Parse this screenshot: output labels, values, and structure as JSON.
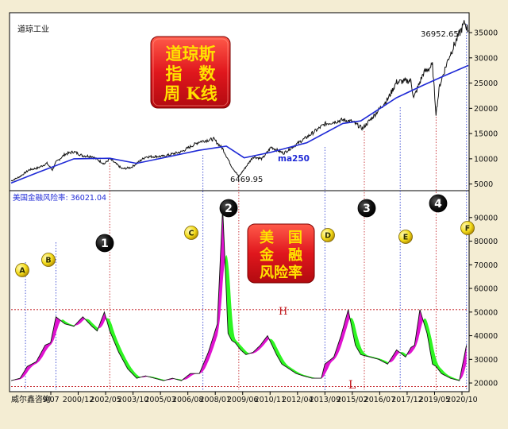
{
  "chart_data": [
    {
      "type": "line",
      "title": "道琼工业",
      "ylim": [
        4000,
        38000
      ],
      "yticks": [
        5000,
        10000,
        15000,
        20000,
        25000,
        30000,
        35000
      ],
      "colors": {
        "price": "#111111",
        "ma": "#1f2ad6"
      },
      "series": [
        {
          "name": "",
          "x": [
            1996.5,
            1997.0,
            1997.5,
            1998.0,
            1998.5,
            1998.8,
            1999.0,
            1999.5,
            2000.0,
            2000.5,
            2001.0,
            2001.7,
            2002.0,
            2002.7,
            2003.2,
            2004.0,
            2005.0,
            2006.0,
            2007.0,
            2007.8,
            2008.3,
            2008.8,
            2009.2,
            2010.0,
            2010.5,
            2011.0,
            2011.7,
            2012.5,
            2013.0,
            2014.0,
            2015.0,
            2015.5,
            2016.1,
            2016.7,
            2017.5,
            2018.0,
            2018.8,
            2018.95,
            2019.5,
            2020.0,
            2020.2,
            2020.4,
            2020.9,
            2021.5,
            2021.8,
            2022.0
          ],
          "values": [
            5600,
            6500,
            7800,
            8200,
            9100,
            7800,
            9300,
            10900,
            11400,
            10600,
            10500,
            9000,
            10000,
            8000,
            8300,
            10400,
            10500,
            11400,
            13400,
            13900,
            12000,
            8500,
            6470,
            10400,
            10000,
            12300,
            11100,
            13100,
            14300,
            16900,
            17700,
            17400,
            16000,
            18400,
            21800,
            25200,
            25500,
            22000,
            27000,
            28500,
            19000,
            24500,
            30000,
            34800,
            36952,
            35400
          ]
        },
        {
          "name": "ma250",
          "x": [
            1996.5,
            1998.0,
            2000.0,
            2002.0,
            2003.5,
            2005.0,
            2007.0,
            2008.5,
            2009.5,
            2011.0,
            2013.0,
            2015.0,
            2016.0,
            2018.0,
            2019.5,
            2020.5,
            2022.0
          ],
          "values": [
            5200,
            7300,
            10000,
            10100,
            9100,
            10200,
            11700,
            12500,
            10200,
            11300,
            13200,
            17000,
            17500,
            22100,
            24600,
            26200,
            28500
          ]
        }
      ],
      "annotations": [
        "36952.65",
        "6469.95",
        "ma250"
      ]
    },
    {
      "type": "area",
      "title": "美国金融风险率: 36021.04",
      "ylim": [
        17000,
        98000
      ],
      "yticks": [
        20000,
        30000,
        40000,
        50000,
        60000,
        70000,
        80000,
        90000
      ],
      "xticks": [
        "9/07",
        "2000/12",
        "2002/05",
        "2003/10",
        "2005/03",
        "2006/08",
        "2008/01",
        "2009/06",
        "2010/11",
        "2012/04",
        "2013/09",
        "2015/02",
        "2016/07",
        "2017/12",
        "2019/05",
        "2020/10"
      ],
      "hlines": [
        {
          "label": "H",
          "value": 51000
        },
        {
          "label": "L",
          "value": 18500
        }
      ],
      "colors": {
        "rising": "#e013d0",
        "falling": "#2ef521",
        "line": "#111111",
        "guides": "#c0141a"
      },
      "series": [
        {
          "name": "",
          "x": [
            1996.5,
            1997.0,
            1997.4,
            1997.9,
            1998.4,
            1998.7,
            1999.0,
            1999.5,
            2000.0,
            2000.5,
            2001.0,
            2001.3,
            2001.7,
            2002.0,
            2002.5,
            2003.0,
            2003.5,
            2004.0,
            2004.5,
            2005.0,
            2005.5,
            2006.0,
            2006.5,
            2007.0,
            2007.5,
            2008.0,
            2008.3,
            2008.6,
            2008.8,
            2009.0,
            2009.3,
            2009.6,
            2010.0,
            2010.4,
            2010.8,
            2011.3,
            2011.6,
            2012.0,
            2012.4,
            2012.8,
            2013.3,
            2013.8,
            2014.0,
            2014.5,
            2014.9,
            2015.3,
            2015.7,
            2016.0,
            2016.5,
            2017.0,
            2017.5,
            2018.0,
            2018.5,
            2018.8,
            2019.0,
            2019.3,
            2019.7,
            2020.0,
            2020.2,
            2020.5,
            2021.0,
            2021.5,
            2021.9
          ],
          "values": [
            21000,
            22000,
            27000,
            29000,
            36000,
            37000,
            48000,
            45000,
            44000,
            48000,
            44000,
            42000,
            50000,
            42000,
            33000,
            26000,
            22000,
            23000,
            22000,
            21000,
            22000,
            21000,
            24000,
            24000,
            33000,
            45000,
            94000,
            41000,
            38000,
            37000,
            34000,
            32000,
            33000,
            36000,
            40000,
            32000,
            28000,
            26000,
            24000,
            23000,
            22000,
            22000,
            28000,
            31000,
            40000,
            51000,
            36000,
            32000,
            31000,
            30000,
            28000,
            34000,
            31000,
            35000,
            36000,
            51000,
            41000,
            28000,
            27000,
            24000,
            22000,
            21000,
            36000
          ]
        }
      ],
      "annotations": [
        "A",
        "B",
        "C",
        "D",
        "E",
        "F",
        "1",
        "2",
        "3",
        "4"
      ]
    }
  ],
  "labels": {
    "top_title": "道琼工业",
    "top_peak": "36952.65",
    "top_low": "6469.95",
    "top_ma": "ma250",
    "bottom_title": "美国金融风险率: 36021.04",
    "source": "威尔鑫咨询",
    "h_label": "H",
    "l_label": "L",
    "box1": [
      "道琼斯",
      "指　数",
      "周 K线"
    ],
    "box2": [
      "美　国",
      "金　融",
      "风险率"
    ],
    "letters": [
      "A",
      "B",
      "C",
      "D",
      "E",
      "F"
    ],
    "numbers": [
      "1",
      "2",
      "3",
      "4"
    ]
  }
}
